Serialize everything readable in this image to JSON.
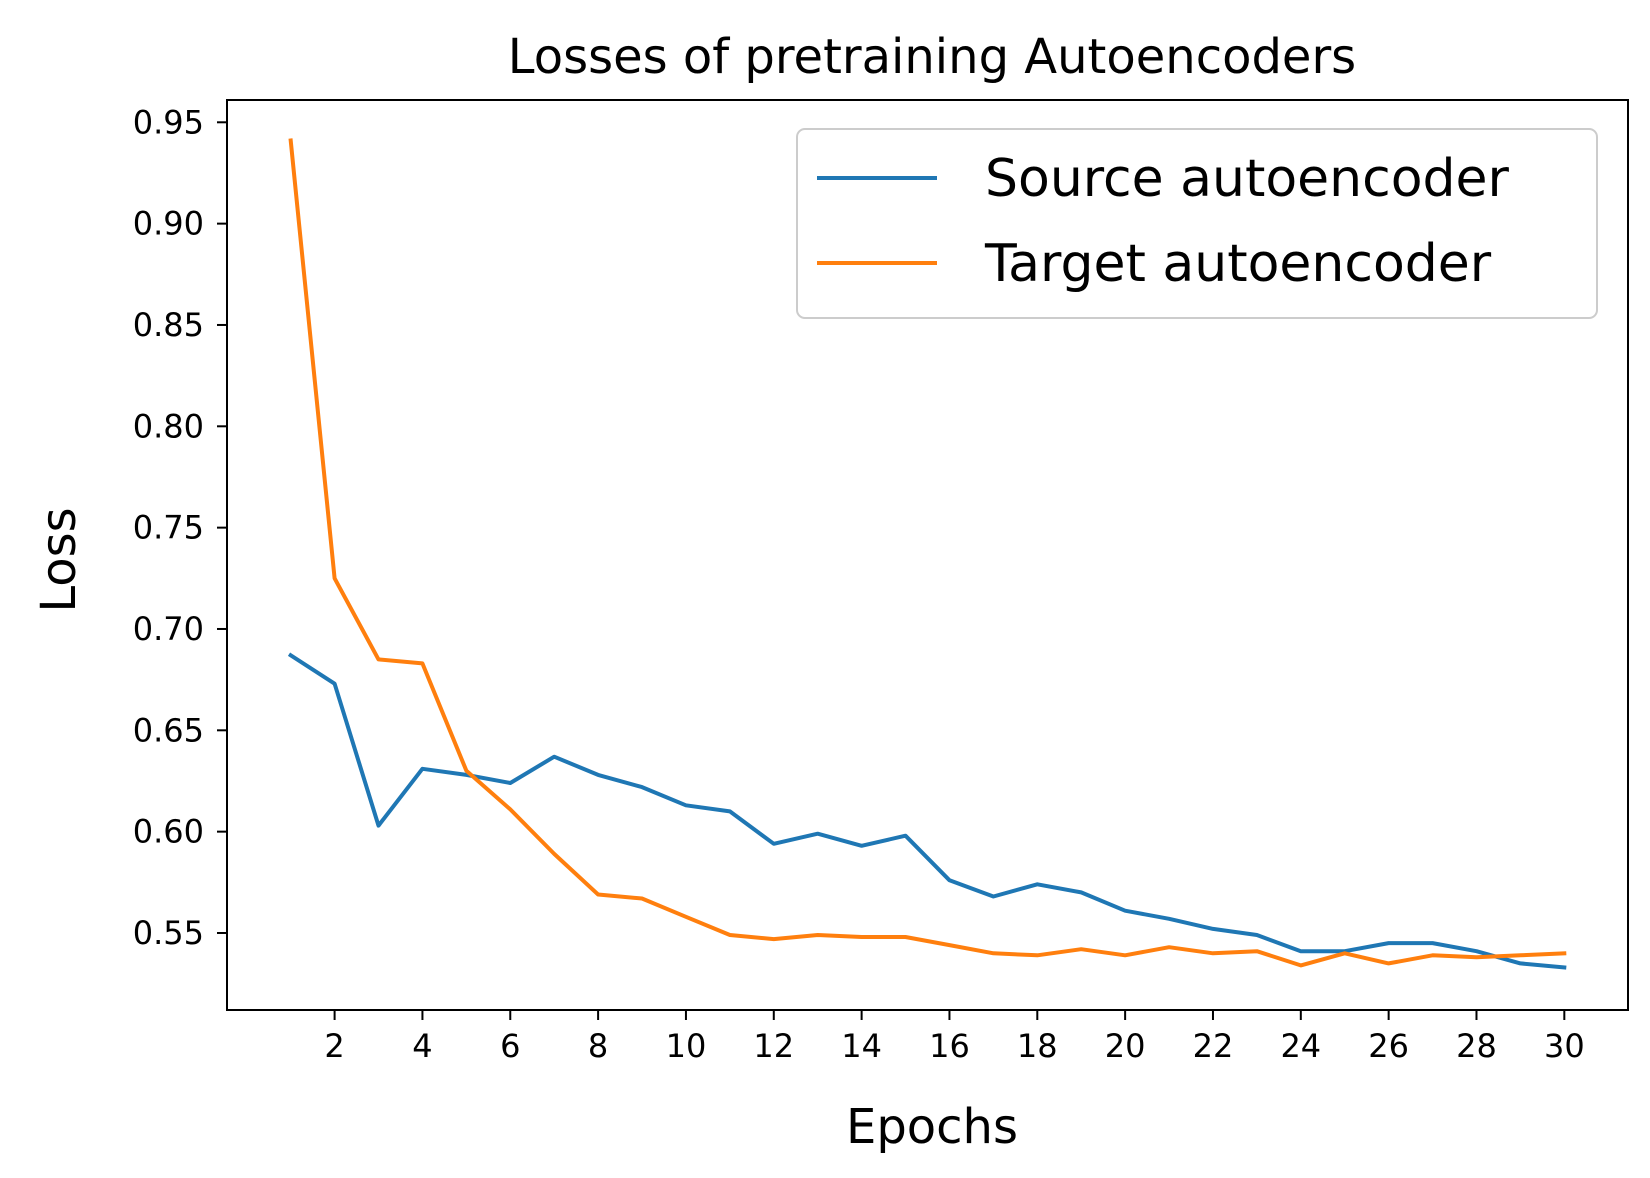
{
  "chart_data": {
    "type": "line",
    "title": "Losses of pretraining Autoencoders",
    "xlabel": "Epochs",
    "ylabel": "Loss",
    "xlim": [
      -0.45,
      31.45
    ],
    "ylim": [
      0.512,
      0.961
    ],
    "xticks": [
      2,
      4,
      6,
      8,
      10,
      12,
      14,
      16,
      18,
      20,
      22,
      24,
      26,
      28,
      30
    ],
    "xtick_labels": [
      "2",
      "4",
      "6",
      "8",
      "10",
      "12",
      "14",
      "16",
      "18",
      "20",
      "22",
      "24",
      "26",
      "28",
      "30"
    ],
    "yticks": [
      0.55,
      0.6,
      0.65,
      0.7,
      0.75,
      0.8,
      0.85,
      0.9,
      0.95
    ],
    "ytick_labels": [
      "0.55",
      "0.60",
      "0.65",
      "0.70",
      "0.75",
      "0.80",
      "0.85",
      "0.90",
      "0.95"
    ],
    "grid": false,
    "legend_position": "top-right",
    "x": [
      1,
      2,
      3,
      4,
      5,
      6,
      7,
      8,
      9,
      10,
      11,
      12,
      13,
      14,
      15,
      16,
      17,
      18,
      19,
      20,
      21,
      22,
      23,
      24,
      25,
      26,
      27,
      28,
      29,
      30
    ],
    "series": [
      {
        "name": "Source autoencoder",
        "color": "#1f77b4",
        "values": [
          0.687,
          0.673,
          0.603,
          0.631,
          0.628,
          0.624,
          0.637,
          0.628,
          0.622,
          0.613,
          0.61,
          0.594,
          0.599,
          0.593,
          0.598,
          0.576,
          0.568,
          0.574,
          0.57,
          0.561,
          0.557,
          0.552,
          0.549,
          0.541,
          0.541,
          0.545,
          0.545,
          0.541,
          0.535,
          0.533
        ]
      },
      {
        "name": "Target autoencoder",
        "color": "#ff7f0e",
        "values": [
          0.941,
          0.725,
          0.685,
          0.683,
          0.63,
          0.611,
          0.589,
          0.569,
          0.567,
          0.558,
          0.549,
          0.547,
          0.549,
          0.548,
          0.548,
          0.544,
          0.54,
          0.539,
          0.542,
          0.539,
          0.543,
          0.54,
          0.541,
          0.534,
          0.54,
          0.535,
          0.539,
          0.538,
          0.539,
          0.54
        ]
      }
    ]
  }
}
